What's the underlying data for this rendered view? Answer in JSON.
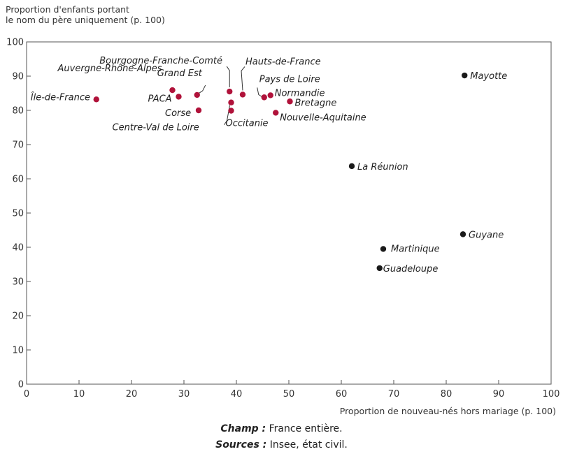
{
  "chart_data": {
    "type": "scatter",
    "ylabel": "Proportion d'enfants portant le nom du père uniquement (p. 100)",
    "ylabel_lines": [
      "Proportion d'enfants portant",
      "le nom du père uniquement (p. 100)"
    ],
    "xlabel": "Proportion de nouveau-nés hors mariage (p. 100)",
    "xlim": [
      0,
      100
    ],
    "ylim": [
      0,
      100
    ],
    "xticks": [
      0,
      10,
      20,
      30,
      40,
      50,
      60,
      70,
      80,
      90,
      100
    ],
    "yticks": [
      0,
      10,
      20,
      30,
      40,
      50,
      60,
      70,
      80,
      90,
      100
    ],
    "grid": false,
    "colors": {
      "metropole": "#b0123a",
      "outremer": "#1a1a1a"
    },
    "points": [
      {
        "label": "Île-de-France",
        "x": 13.3,
        "y": 83.2,
        "group": "metropole"
      },
      {
        "label": "Auvergne-Rhône-Alpes",
        "x": 27.8,
        "y": 85.9,
        "group": "metropole"
      },
      {
        "label": "PACA",
        "x": 29.0,
        "y": 84.0,
        "group": "metropole"
      },
      {
        "label": "Grand Est",
        "x": 32.5,
        "y": 84.5,
        "group": "metropole"
      },
      {
        "label": "Corse",
        "x": 32.8,
        "y": 80.0,
        "group": "metropole"
      },
      {
        "label": "Bourgogne-Franche-Comté",
        "x": 38.7,
        "y": 85.5,
        "group": "metropole"
      },
      {
        "label": "Centre-Val de Loire",
        "x": 39.0,
        "y": 82.3,
        "group": "metropole"
      },
      {
        "label": "Occitanie",
        "x": 39.0,
        "y": 79.9,
        "group": "metropole"
      },
      {
        "label": "Hauts-de-France",
        "x": 41.2,
        "y": 84.6,
        "group": "metropole"
      },
      {
        "label": "Pays de Loire",
        "x": 45.3,
        "y": 83.8,
        "group": "metropole"
      },
      {
        "label": "Normandie",
        "x": 46.5,
        "y": 84.4,
        "group": "metropole"
      },
      {
        "label": "Nouvelle-Aquitaine",
        "x": 47.5,
        "y": 79.3,
        "group": "metropole"
      },
      {
        "label": "Bretagne",
        "x": 50.2,
        "y": 82.6,
        "group": "metropole"
      },
      {
        "label": "La Réunion",
        "x": 62.0,
        "y": 63.7,
        "group": "outremer"
      },
      {
        "label": "Martinique",
        "x": 68.0,
        "y": 39.5,
        "group": "outremer"
      },
      {
        "label": "Guadeloupe",
        "x": 67.3,
        "y": 33.9,
        "group": "outremer"
      },
      {
        "label": "Guyane",
        "x": 83.2,
        "y": 43.8,
        "group": "outremer"
      },
      {
        "label": "Mayotte",
        "x": 83.5,
        "y": 90.2,
        "group": "outremer"
      }
    ]
  },
  "notes": {
    "champ_label": "Champ :",
    "champ_text": " France entière.",
    "sources_label": "Sources :",
    "sources_text": " Insee, état civil."
  }
}
